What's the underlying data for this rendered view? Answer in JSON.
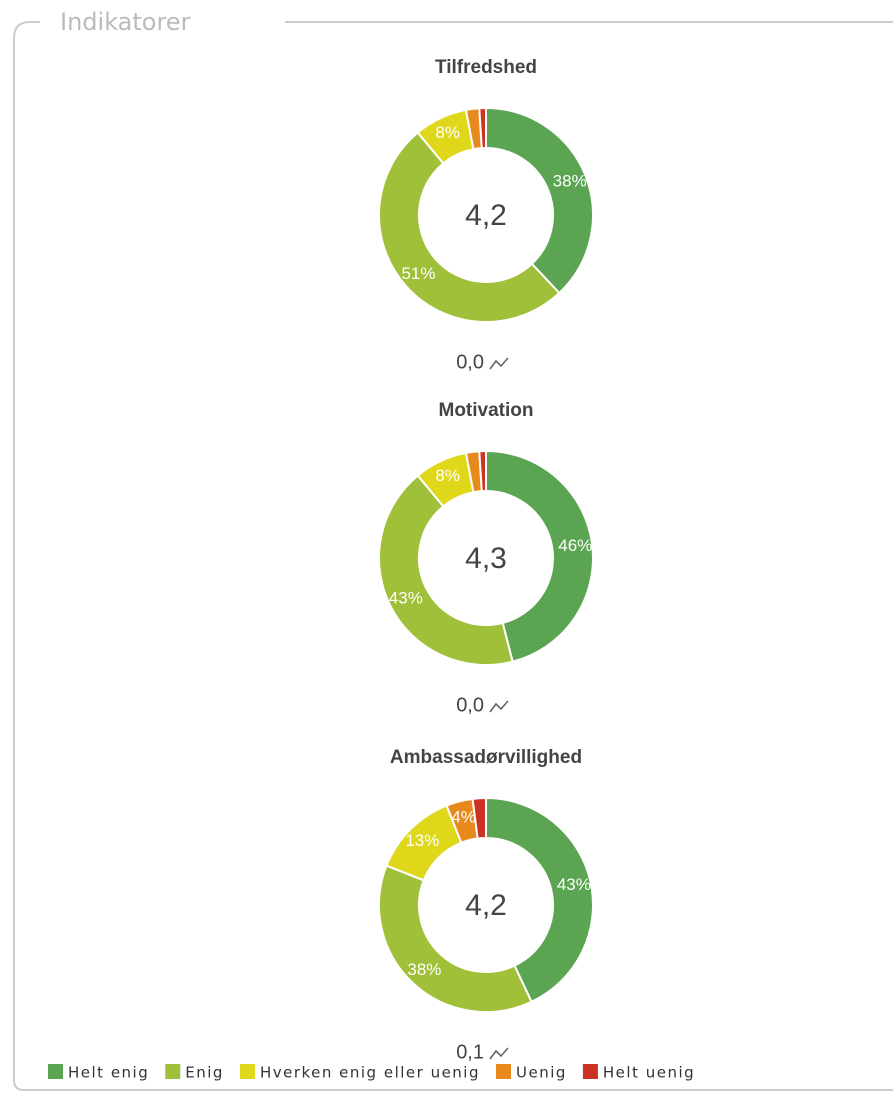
{
  "panel_title": "Indikatorer",
  "legend": {
    "categories": [
      "Helt enig",
      "Enig",
      "Hverken enig eller uenig",
      "Uenig",
      "Helt uenig"
    ],
    "colors": [
      "#5ba552",
      "#a1c03a",
      "#dfd81a",
      "#e8891e",
      "#cc3322"
    ]
  },
  "chart_data": [
    {
      "type": "pie",
      "title": "Tilfredshed",
      "values": [
        38,
        51,
        8,
        2,
        1
      ],
      "value_labels": [
        "38%",
        "51%",
        "8%",
        null,
        null
      ],
      "center_label": "4,2",
      "trend_label": "0,0"
    },
    {
      "type": "pie",
      "title": "Motivation",
      "values": [
        46,
        43,
        8,
        2,
        1
      ],
      "value_labels": [
        "46%",
        "43%",
        "8%",
        null,
        null
      ],
      "center_label": "4,3",
      "trend_label": "0,0"
    },
    {
      "type": "pie",
      "title": "Ambassadørvillighed",
      "values": [
        43,
        38,
        13,
        4,
        2
      ],
      "value_labels": [
        "43%",
        "38%",
        "13%",
        "4%",
        null
      ],
      "center_label": "4,2",
      "trend_label": "0,1"
    }
  ]
}
